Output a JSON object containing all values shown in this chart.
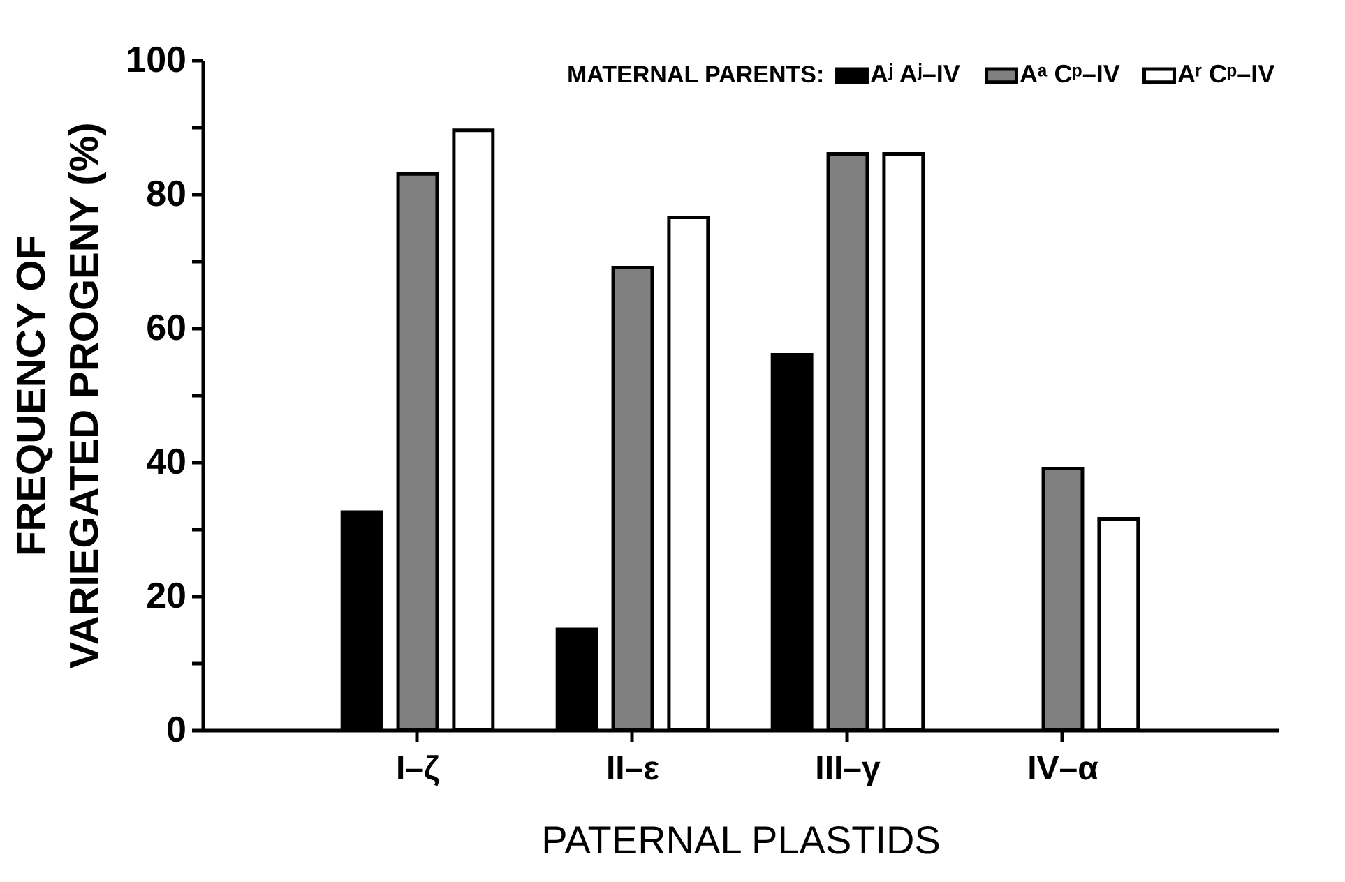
{
  "chart_data": {
    "type": "bar",
    "xlabel": "PATERNAL PLASTIDS",
    "ylabel": "FREQUENCY OF\nVARIEGATED PROGENY (%)",
    "legend_title": "MATERNAL PARENTS:",
    "categories": [
      "I–ζ",
      "II–ε",
      "III–γ",
      "IV–α"
    ],
    "series": [
      {
        "name": "Aʲ Aʲ–IV",
        "color": "#000000",
        "values": [
          32.5,
          15,
          56,
          null
        ]
      },
      {
        "name": "Aᵃ Cᵖ–IV",
        "color": "#808080",
        "values": [
          83,
          69,
          86,
          39
        ]
      },
      {
        "name": "Aʳ Cᵖ–IV",
        "color": "#ffffff",
        "values": [
          89.5,
          76.5,
          86,
          31.5
        ]
      }
    ],
    "ylim": [
      0,
      100
    ],
    "yticks": [
      0,
      {
        "value": 10,
        "label": null
      },
      20,
      {
        "value": 30,
        "label": null
      },
      40,
      {
        "value": 50,
        "label": null
      },
      60,
      {
        "value": 70,
        "label": null
      },
      80,
      {
        "value": 90,
        "label": null
      },
      100
    ],
    "legend": "top right",
    "grid": false
  }
}
